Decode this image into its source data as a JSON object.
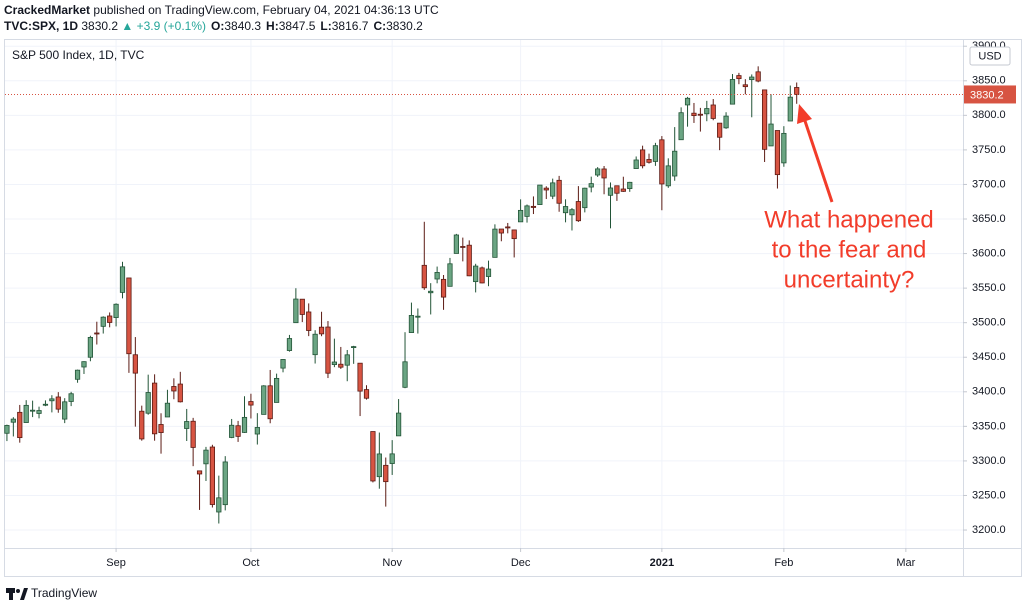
{
  "header": {
    "author": "CrackedMarket",
    "published": "published on TradingView.com, February 04, 2021 04:36:13 UTC",
    "symbol": "TVC:SPX, 1D",
    "last": "3830.2",
    "change": "▲ +3.9 (+0.1%)",
    "ohlc": [
      {
        "label": "O:",
        "value": "3840.3"
      },
      {
        "label": "H:",
        "value": "3847.5"
      },
      {
        "label": "L:",
        "value": "3816.7"
      },
      {
        "label": "C:",
        "value": "3830.2"
      }
    ]
  },
  "chart_data": {
    "type": "candlestick",
    "title": "S&P 500 Index, 1D, TVC",
    "currency": "USD",
    "annotation": [
      "What happened",
      "to the fear and",
      "uncertainty?"
    ],
    "up_color": "#6ba583",
    "down_color": "#d75442",
    "up_border": "#225437",
    "down_border": "#5b1a13",
    "grid": true,
    "last_price_line": true,
    "ylim": [
      3174,
      3909
    ],
    "xlim": [
      -0.3,
      148.9
    ],
    "yticks": [
      {
        "value": 3200,
        "label": "3200.0"
      },
      {
        "value": 3250,
        "label": "3250.0"
      },
      {
        "value": 3300,
        "label": "3300.0"
      },
      {
        "value": 3350,
        "label": "3350.0"
      },
      {
        "value": 3400,
        "label": "3400.0"
      },
      {
        "value": 3450,
        "label": "3450.0"
      },
      {
        "value": 3500,
        "label": "3500.0"
      },
      {
        "value": 3550,
        "label": "3550.0"
      },
      {
        "value": 3600,
        "label": "3600.0"
      },
      {
        "value": 3650,
        "label": "3650.0"
      },
      {
        "value": 3700,
        "label": "3700.0"
      },
      {
        "value": 3750,
        "label": "3750.0"
      },
      {
        "value": 3800,
        "label": "3800.0"
      },
      {
        "value": 3850,
        "label": "3850.0"
      },
      {
        "value": 3900,
        "label": "3900.0"
      }
    ],
    "xticks": [
      {
        "value": 17,
        "label": "Sep"
      },
      {
        "value": 38,
        "label": "Oct"
      },
      {
        "value": 60,
        "label": "Nov"
      },
      {
        "value": 80,
        "label": "Dec"
      },
      {
        "value": 102,
        "label": "2021"
      },
      {
        "value": 121,
        "label": "Feb"
      },
      {
        "value": 140,
        "label": "Mar"
      }
    ],
    "open": [
      3340.0,
      3356.0,
      3370.3,
      3355.5,
      3372.9,
      3368.7,
      3380.9,
      3387.0,
      3392.5,
      3360.5,
      3386.0,
      3418.1,
      3435.9,
      3449.97,
      3485.1,
      3494.7,
      3509.7,
      3507.4,
      3543.8,
      3564.7,
      3453.6,
      3371.9,
      3369.0,
      3412.6,
      3352.7,
      3363.6,
      3407.7,
      3411.2,
      3346.9,
      3357.4,
      3285.6,
      3295.8,
      3320.1,
      3226.1,
      3236.7,
      3333.9,
      3350.9,
      3341.2,
      3385.9,
      3338.9,
      3367.3,
      3408.7,
      3384.6,
      3434.3,
      3459.7,
      3500.0,
      3534.0,
      3515.5,
      3453.7,
      3493.5,
      3493.7,
      3439.4,
      3439.9,
      3438.5,
      3464.9,
      3441.4,
      3403.2,
      3342.5,
      3277.2,
      3293.6,
      3296.2,
      3336.25,
      3406.5,
      3485.7,
      3508.3,
      3583.0,
      3543.3,
      3563.2,
      3562.7,
      3552.6,
      3600.2,
      3610.3,
      3612.1,
      3559.4,
      3579.3,
      3566.8,
      3594.5,
      3635.5,
      3638.55,
      3634.2,
      3645.9,
      3653.8,
      3668.3,
      3670.9,
      3694.7,
      3683.05,
      3705.98,
      3659.1,
      3656.1,
      3675.3,
      3666.4,
      3696.25,
      3713.65,
      3722.4,
      3684.3,
      3698.1,
      3693.4,
      3694.0,
      3723.0,
      3750.0,
      3736.2,
      3733.3,
      3764.6,
      3698.0,
      3712.2,
      3764.7,
      3815.05,
      3803.1,
      3801.6,
      3802.2,
      3814.98,
      3788.7,
      3781.9,
      3816.2,
      3857.5,
      3844.2,
      3851.7,
      3862.96,
      3836.8,
      3755.75,
      3778.05,
      3731.2,
      3791.8,
      3840.3
    ],
    "high": [
      3352.5,
      3363.3,
      3381.0,
      3387.9,
      3387.2,
      3378.5,
      3387.6,
      3395.1,
      3399.5,
      3390.8,
      3399.96,
      3432.1,
      3444.2,
      3481.1,
      3501.4,
      3509.2,
      3514.8,
      3528.0,
      3588.1,
      3564.9,
      3479.2,
      3379.97,
      3424.8,
      3425.3,
      3368.95,
      3402.9,
      3419.5,
      3428.9,
      3375.2,
      3362.3,
      3285.6,
      3320.3,
      3323.35,
      3278.7,
      3306.9,
      3360.7,
      3357.9,
      3393.6,
      3397.2,
      3369.1,
      3409.6,
      3431.6,
      3426.3,
      3447.3,
      3482.3,
      3549.85,
      3534.0,
      3527.9,
      3489.1,
      3515.8,
      3502.4,
      3476.9,
      3464.9,
      3460.5,
      3466.5,
      3441.4,
      3409.5,
      3342.5,
      3341.05,
      3304.9,
      3330.1,
      3389.5,
      3486.25,
      3529.05,
      3520.6,
      3645.99,
      3557.2,
      3581.2,
      3569.0,
      3593.7,
      3628.5,
      3623.1,
      3619.1,
      3585.2,
      3581.2,
      3589.8,
      3642.3,
      3635.5,
      3644.3,
      3634.2,
      3678.45,
      3670.96,
      3682.7,
      3699.2,
      3697.4,
      3708.45,
      3712.4,
      3678.5,
      3665.9,
      3697.6,
      3695.3,
      3711.3,
      3725.1,
      3726.7,
      3702.9,
      3698.3,
      3711.2,
      3703.8,
      3740.5,
      3756.1,
      3744.6,
      3760.2,
      3769.99,
      3737.8,
      3783.0,
      3811.55,
      3826.7,
      3817.9,
      3810.8,
      3820.96,
      3823.6,
      3788.7,
      3804.5,
      3859.75,
      3861.45,
      3852.3,
      3859.2,
      3870.9,
      3836.8,
      3830.5,
      3778.05,
      3784.3,
      3843.1,
      3847.5
    ],
    "low": [
      3328.7,
      3335.4,
      3326.4,
      3355.5,
      3363.4,
      3361.6,
      3379.2,
      3370.2,
      3369.7,
      3354.7,
      3379.3,
      3413.1,
      3425.8,
      3444.2,
      3468.4,
      3484.3,
      3493.3,
      3494.6,
      3535.2,
      3427.4,
      3349.6,
      3329.3,
      3366.8,
      3329.25,
      3310.5,
      3363.6,
      3389.25,
      3384.5,
      3328.8,
      3292.4,
      3229.1,
      3270.95,
      3232.6,
      3209.45,
      3228.4,
      3332.9,
      3327.5,
      3340.5,
      3361.4,
      3323.7,
      3367.3,
      3354.5,
      3384.6,
      3428.2,
      3458.1,
      3499.6,
      3500.9,
      3480.55,
      3440.9,
      3480.45,
      3419.9,
      3435.65,
      3433.1,
      3415.3,
      3440.45,
      3364.9,
      3388.7,
      3268.9,
      3259.8,
      3233.9,
      3279.7,
      3336.25,
      3405.2,
      3485.7,
      3484.3,
      3547.5,
      3511.9,
      3557.0,
      3518.6,
      3552.6,
      3600.2,
      3588.7,
      3567.3,
      3543.8,
      3556.85,
      3552.8,
      3594.5,
      3617.8,
      3629.3,
      3594.4,
      3645.9,
      3644.8,
      3657.2,
      3670.9,
      3678.9,
      3678.8,
      3660.5,
      3645.2,
      3633.4,
      3645.8,
      3659.6,
      3688.6,
      3710.9,
      3685.8,
      3636.5,
      3676.2,
      3689.3,
      3689.3,
      3723.0,
      3723.3,
      3730.2,
      3726.9,
      3662.7,
      3695.1,
      3705.3,
      3764.7,
      3783.6,
      3789.0,
      3776.5,
      3791.5,
      3792.9,
      3749.6,
      3780.4,
      3816.2,
      3845.05,
      3830.4,
      3797.2,
      3847.8,
      3732.5,
      3755.75,
      3694.1,
      3725.6,
      3791.8,
      3816.7
    ],
    "close": [
      3351.3,
      3360.5,
      3333.7,
      3380.4,
      3373.4,
      3372.9,
      3382.0,
      3389.8,
      3374.9,
      3385.5,
      3397.2,
      3431.3,
      3443.6,
      3478.7,
      3484.6,
      3508.0,
      3500.3,
      3526.7,
      3580.8,
      3455.1,
      3427.0,
      3331.8,
      3399.0,
      3339.2,
      3341.0,
      3383.5,
      3401.2,
      3385.5,
      3357.0,
      3319.5,
      3281.1,
      3315.6,
      3236.9,
      3246.6,
      3298.5,
      3351.6,
      3335.5,
      3363.0,
      3380.8,
      3348.4,
      3408.6,
      3361.0,
      3419.4,
      3446.8,
      3477.1,
      3534.2,
      3511.9,
      3488.7,
      3483.3,
      3483.8,
      3426.9,
      3443.1,
      3435.6,
      3453.5,
      3465.4,
      3401.0,
      3390.7,
      3271.0,
      3310.1,
      3270.0,
      3310.2,
      3369.2,
      3443.4,
      3510.5,
      3509.4,
      3550.5,
      3545.5,
      3572.7,
      3537.0,
      3585.2,
      3626.9,
      3609.5,
      3567.8,
      3581.9,
      3557.5,
      3577.6,
      3635.4,
      3629.7,
      3638.4,
      3621.6,
      3662.5,
      3669.0,
      3666.7,
      3699.1,
      3692.0,
      3702.3,
      3672.8,
      3668.1,
      3663.5,
      3647.5,
      3694.6,
      3701.2,
      3722.5,
      3709.4,
      3694.9,
      3687.3,
      3690.0,
      3703.1,
      3735.4,
      3727.0,
      3732.0,
      3756.1,
      3700.7,
      3726.9,
      3748.1,
      3803.8,
      3824.7,
      3799.6,
      3801.2,
      3809.8,
      3795.5,
      3768.3,
      3798.9,
      3851.9,
      3853.1,
      3841.5,
      3855.4,
      3849.6,
      3750.8,
      3787.4,
      3714.2,
      3773.9,
      3826.3,
      3830.2
    ]
  },
  "footer": {
    "brand": "TradingView"
  }
}
